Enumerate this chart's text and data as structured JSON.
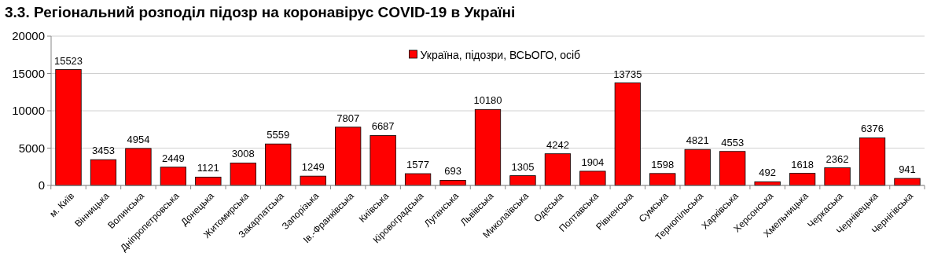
{
  "chart_data": {
    "type": "bar",
    "title": "3.3.  Регіональний розподіл підозр на коронавірус COVID-19 в Україні",
    "categories": [
      "м. Київ",
      "Вінницька",
      "Волинська",
      "Дніпропетровська",
      "Донецька",
      "Житомирська",
      "Закарпатська",
      "Запорізька",
      "Ів.-Франківська",
      "Київська",
      "Кіровоградська",
      "Луганська",
      "Львівська",
      "Миколаївська",
      "Одеська",
      "Полтавська",
      "Рівненська",
      "Сумська",
      "Тернопільська",
      "Харківська",
      "Херсонська",
      "Хмельницька",
      "Черкаська",
      "Чернівецька",
      "Чернігівська"
    ],
    "series": [
      {
        "name": "Україна, підозри, ВСЬОГО, осіб",
        "color": "#ff0000",
        "values": [
          15523,
          3453,
          4954,
          2449,
          1121,
          3008,
          5559,
          1249,
          7807,
          6687,
          1577,
          693,
          10180,
          1305,
          4242,
          1904,
          13735,
          1598,
          4821,
          4553,
          492,
          1618,
          2362,
          6376,
          941
        ]
      }
    ],
    "ylim": [
      0,
      20000
    ],
    "yticks": [
      0,
      5000,
      10000,
      15000,
      20000
    ],
    "grid": "y",
    "legend": "top",
    "data_labels": true
  }
}
